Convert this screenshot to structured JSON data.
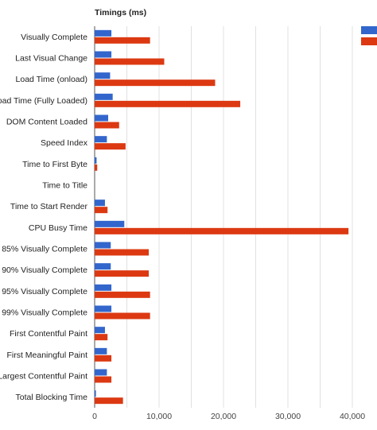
{
  "chart_data": {
    "type": "bar",
    "orientation": "horizontal",
    "title": "Timings (ms)",
    "xlabel": "",
    "ylabel": "",
    "xlim": [
      0,
      40000
    ],
    "xticks": [
      0,
      10000,
      20000,
      30000,
      40000
    ],
    "xtick_labels": [
      "0",
      "10,000",
      "20,000",
      "30,000",
      "40,000"
    ],
    "grid": true,
    "legend_position": "top-right",
    "categories": [
      "Visually Complete",
      "Last Visual Change",
      "Load Time (onload)",
      "Load Time (Fully Loaded)",
      "DOM Content Loaded",
      "Speed Index",
      "Time to First Byte",
      "Time to Title",
      "Time to Start Render",
      "CPU Busy Time",
      "85% Visually Complete",
      "90% Visually Complete",
      "95% Visually Complete",
      "99% Visually Complete",
      "First Contentful Paint",
      "First Meaningful Paint",
      "Largest Contentful Paint",
      "Total Blocking Time"
    ],
    "series": [
      {
        "color": "#3366cc",
        "values": [
          2600,
          2600,
          2400,
          2800,
          2100,
          1900,
          300,
          0,
          1600,
          4600,
          2500,
          2500,
          2600,
          2600,
          1600,
          1900,
          1900,
          200
        ]
      },
      {
        "color": "#dc3912",
        "values": [
          8600,
          10800,
          18700,
          22600,
          3800,
          4800,
          400,
          0,
          2000,
          39400,
          8400,
          8400,
          8600,
          8600,
          2000,
          2600,
          2600,
          4400
        ]
      }
    ]
  }
}
